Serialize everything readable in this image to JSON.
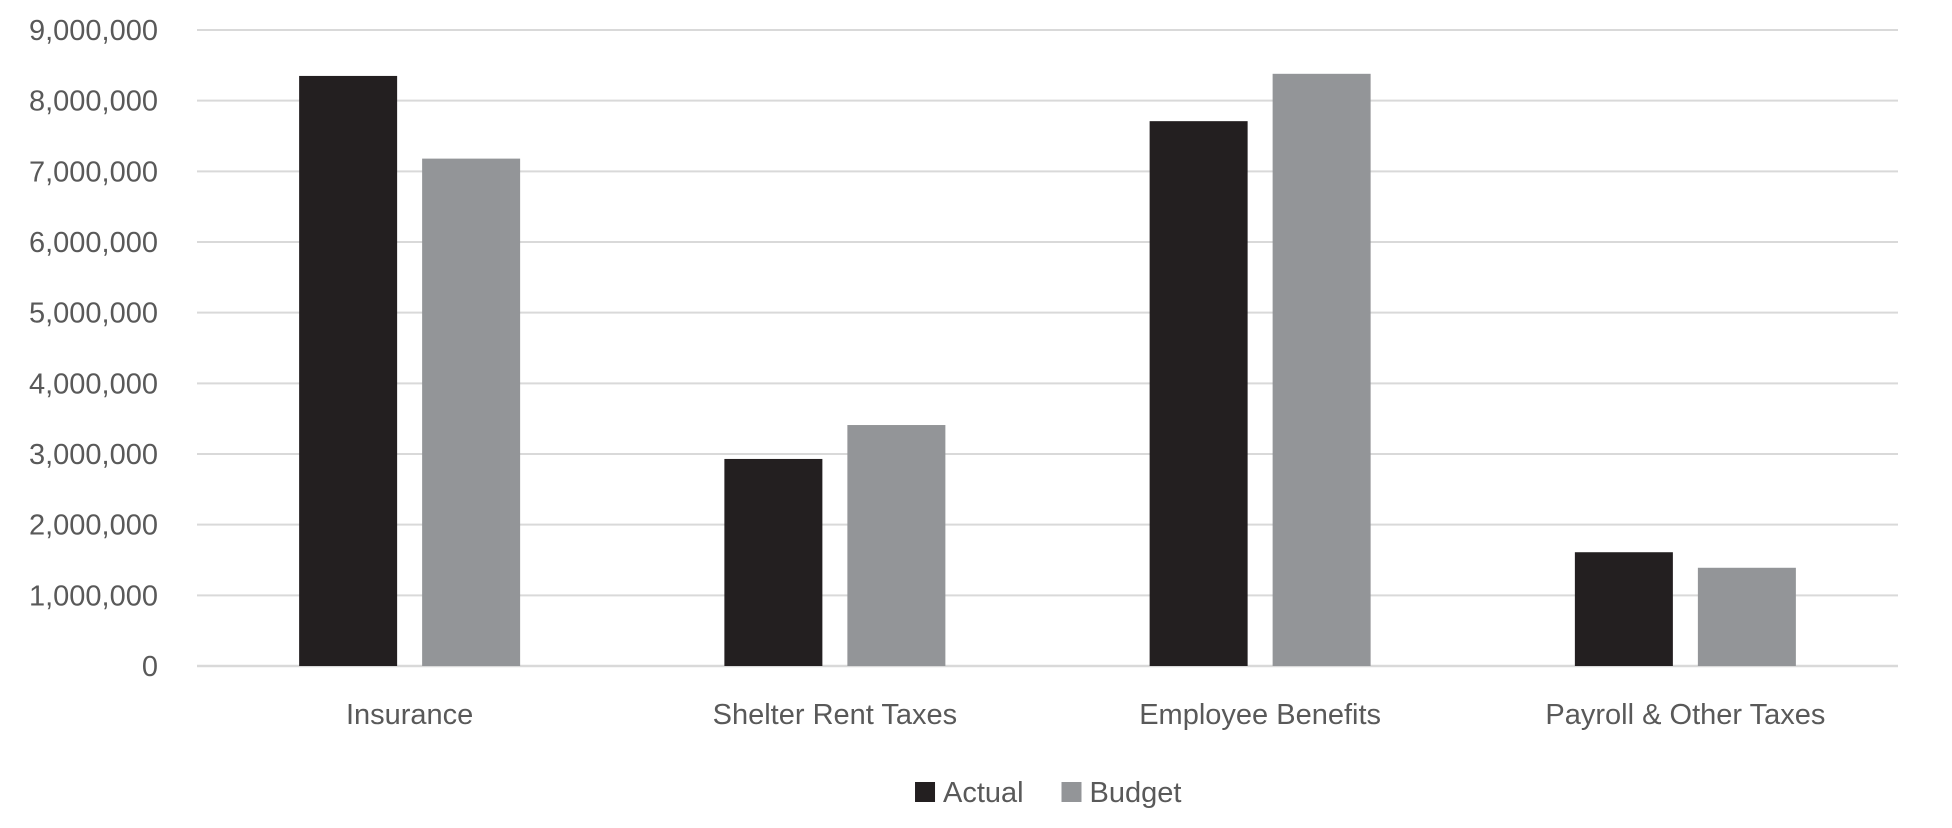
{
  "chart_data": {
    "type": "bar",
    "title": "",
    "xlabel": "",
    "ylabel": "",
    "categories": [
      "Insurance",
      "Shelter Rent Taxes",
      "Employee Benefits",
      "Payroll & Other Taxes"
    ],
    "series": [
      {
        "name": "Actual",
        "color": "#231f20",
        "values": [
          8350000,
          2930000,
          7710000,
          1610000
        ]
      },
      {
        "name": "Budget",
        "color": "#939598",
        "values": [
          7180000,
          3410000,
          8380000,
          1390000
        ]
      }
    ],
    "ylim": [
      0,
      9000000
    ],
    "yticks": [
      0,
      1000000,
      2000000,
      3000000,
      4000000,
      5000000,
      6000000,
      7000000,
      8000000,
      9000000
    ],
    "ytick_labels": [
      "0",
      "1,000,000",
      "2,000,000",
      "3,000,000",
      "4,000,000",
      "5,000,000",
      "6,000,000",
      "7,000,000",
      "8,000,000",
      "9,000,000"
    ],
    "grid": true,
    "grid_color": "#d9d9d9",
    "legend_position": "bottom"
  }
}
